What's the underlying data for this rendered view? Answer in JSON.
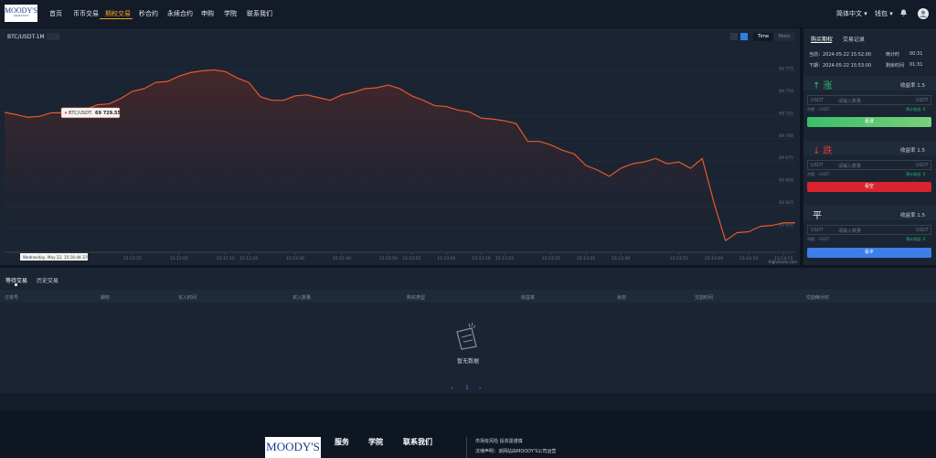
{
  "nav": {
    "logo": "MOODY'S",
    "logo_sub": "ANALYTICS",
    "items": [
      "首页",
      "币币交易",
      "期权交易",
      "秒合约",
      "永续合约",
      "申购",
      "学院",
      "联系我们"
    ],
    "language": "简体中文",
    "wallet": "钱包"
  },
  "chart_header": {
    "symbol": "BTC/USDT-1M",
    "time_button": "Time",
    "more_button": "More"
  },
  "chart_data": {
    "type": "line",
    "color": "#e8582c",
    "values": [
      69729.55,
      69727,
      69724,
      69725,
      69729,
      69729,
      69731,
      69733,
      69738,
      69739,
      69745,
      69753,
      69756,
      69763,
      69764,
      69770,
      69774,
      69776,
      69777,
      69775,
      69768,
      69763,
      69747,
      69743,
      69743,
      69748,
      69749,
      69746,
      69743,
      69749,
      69752,
      69756,
      69757,
      69760,
      69756,
      69748,
      69743,
      69737,
      69736,
      69732,
      69730,
      69723,
      69722,
      69720,
      69717,
      69697,
      69697,
      69693,
      69687,
      69683,
      69670,
      69665,
      69658,
      69667,
      69672,
      69674,
      69678,
      69672,
      69674,
      69667,
      69678,
      69629,
      69586,
      69595,
      69596,
      69602,
      69603,
      69606,
      69606
    ],
    "categories": [
      null,
      null,
      null,
      null,
      null,
      null,
      null,
      null,
      null,
      null,
      null,
      "15:11:55",
      null,
      null,
      null,
      "15:12:05",
      null,
      null,
      null,
      "15:12:15",
      null,
      "15:12:20",
      null,
      null,
      null,
      "15:12:30",
      null,
      null,
      null,
      "15:12:40",
      null,
      null,
      null,
      "15:12:50",
      null,
      "15:12:55",
      null,
      null,
      "15:13:05",
      null,
      null,
      "15:13:10",
      null,
      "15:13:15",
      null,
      null,
      null,
      "15:13:25",
      null,
      null,
      "15:13:35",
      null,
      null,
      "15:13:40",
      null,
      null,
      null,
      null,
      "15:13:55",
      null,
      null,
      "15:14:00",
      null,
      null,
      "15:14:10",
      null,
      null,
      "15:14:15",
      null
    ],
    "ylim": [
      69573,
      69803
    ],
    "yticks": [
      {
        "value": 69600,
        "label": "69 600"
      },
      {
        "value": 69625,
        "label": "69 625"
      },
      {
        "value": 69650,
        "label": "69 650"
      },
      {
        "value": 69675,
        "label": "69 675"
      },
      {
        "value": 69700,
        "label": "69 700"
      },
      {
        "value": 69725,
        "label": "69 725"
      },
      {
        "value": 69750,
        "label": "69 750"
      },
      {
        "value": 69775,
        "label": "69 775"
      }
    ],
    "grid": true,
    "tooltip": {
      "series": "BTC/USDT:",
      "value_label": "69 729.55"
    },
    "crosshair_label": "Wednesday, May 22, 15:16:44.376",
    "credit": "Highcharts.com"
  },
  "order_panel": {
    "tabs": [
      "购买期权",
      "交易记录"
    ],
    "current_label": "当前：2024-05-22 15:52:00",
    "current_tag": "倒计时",
    "current_time": "00:31",
    "next_label": "下期：2024-05-22 15:53:00",
    "next_tag": "剩余时间",
    "next_time": "01:31",
    "sections": [
      {
        "title": "↑ 涨",
        "rate": "收益率 1.5",
        "unit": "USDT",
        "placeholder": "请输入数量",
        "suffix": "USDT",
        "balance": "余额: --USDT",
        "profit": "预计收益: 0",
        "button": "看涨"
      },
      {
        "title": "↓ 跌",
        "rate": "收益率 1.5",
        "unit": "USDT",
        "placeholder": "请输入数量",
        "suffix": "USDT",
        "balance": "余额: --USDT",
        "profit": "预计收益: 0",
        "button": "看空"
      },
      {
        "title": "平",
        "rate": "收益率 1.5",
        "unit": "USDT",
        "placeholder": "请输入数量",
        "suffix": "USDT",
        "balance": "余额: --USDT",
        "profit": "预计收益: 0",
        "button": "看平"
      }
    ]
  },
  "orders": {
    "tabs": [
      "等待交易",
      "历史交易"
    ],
    "columns": [
      "订单号",
      "期权",
      "买入时间",
      "买入数量",
      "购买类型",
      "收益率",
      "状态",
      "交割时间",
      "交割倒计时"
    ],
    "empty": "暂无数据",
    "page": "1"
  },
  "footer": {
    "logo": "MOODY'S",
    "links": [
      "服务",
      "学院",
      "联系我们"
    ],
    "risk": "市场有风险 投资需谨慎",
    "legal": "法律声明：该网站由MOODY'S公司运营"
  }
}
